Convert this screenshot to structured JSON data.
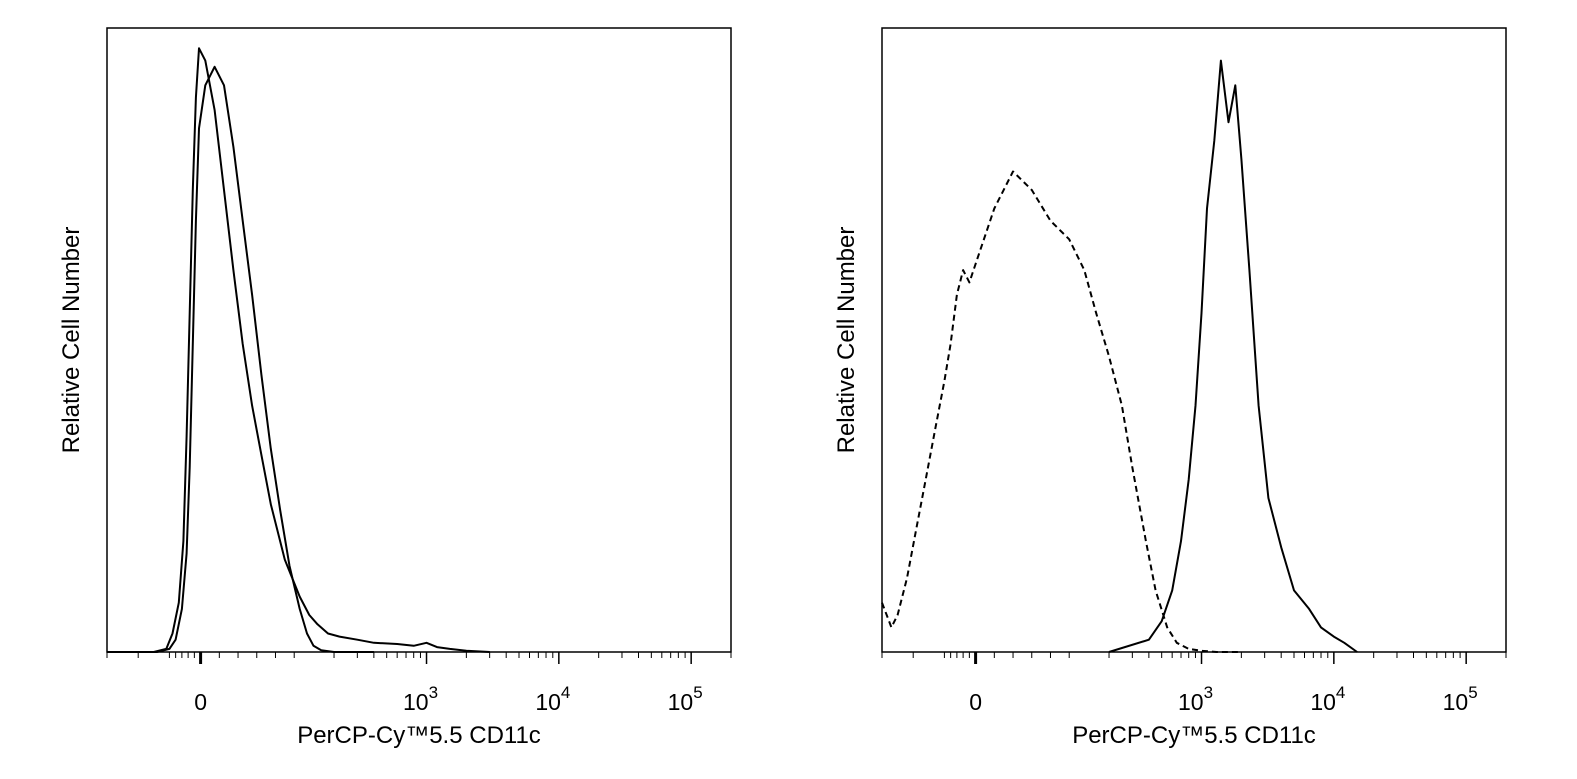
{
  "chart_data": [
    {
      "type": "line",
      "subtype": "flow-cytometry-histogram",
      "xlabel": "PerCP-Cy™5.5 CD11c",
      "ylabel": "Relative Cell Number",
      "x_scale": "biexponential",
      "xlim": [
        -300,
        200000
      ],
      "ylim": [
        0,
        100
      ],
      "x_ticks": [
        {
          "value": 0,
          "base": "0",
          "exp": ""
        },
        {
          "value": 1000,
          "base": "10",
          "exp": "3"
        },
        {
          "value": 10000,
          "base": "10",
          "exp": "4"
        },
        {
          "value": 100000,
          "base": "10",
          "exp": "5"
        }
      ],
      "grid": false,
      "legend": "none",
      "series": [
        {
          "style": "solid",
          "x": [
            -300,
            -150,
            -110,
            -90,
            -70,
            -55,
            -45,
            -35,
            -25,
            -15,
            -5,
            5,
            15,
            25,
            35,
            45,
            55,
            65,
            75,
            90,
            110,
            130,
            150,
            180,
            220,
            300,
            400,
            600,
            800,
            1000,
            1200,
            1500,
            2000,
            3000
          ],
          "y": [
            0,
            0,
            0.5,
            3,
            8,
            18,
            35,
            55,
            75,
            90,
            98,
            96,
            88,
            75,
            62,
            50,
            40,
            32,
            24,
            15,
            9,
            6,
            4.5,
            3,
            2.5,
            2,
            1.5,
            1.3,
            1,
            1.5,
            0.8,
            0.5,
            0.2,
            0
          ]
        },
        {
          "style": "solid",
          "x": [
            -300,
            -140,
            -100,
            -80,
            -60,
            -45,
            -35,
            -25,
            -15,
            -5,
            5,
            15,
            25,
            35,
            45,
            55,
            65,
            75,
            85,
            95,
            110,
            125,
            140,
            160,
            200,
            400
          ],
          "y": [
            0,
            0,
            0.5,
            2,
            7,
            16,
            30,
            50,
            70,
            85,
            92,
            95,
            92,
            82,
            70,
            58,
            45,
            33,
            23,
            14,
            7,
            3,
            1,
            0.3,
            0,
            0
          ]
        }
      ]
    },
    {
      "type": "line",
      "subtype": "flow-cytometry-histogram",
      "xlabel": "PerCP-Cy™5.5 CD11c",
      "ylabel": "Relative Cell Number",
      "x_scale": "biexponential",
      "xlim": [
        -300,
        200000
      ],
      "ylim": [
        0,
        100
      ],
      "x_ticks": [
        {
          "value": 0,
          "base": "0",
          "exp": ""
        },
        {
          "value": 1000,
          "base": "10",
          "exp": "3"
        },
        {
          "value": 10000,
          "base": "10",
          "exp": "4"
        },
        {
          "value": 100000,
          "base": "10",
          "exp": "5"
        }
      ],
      "grid": false,
      "legend": "none",
      "series": [
        {
          "style": "dashed",
          "x": [
            -300,
            -270,
            -250,
            -220,
            -190,
            -160,
            -130,
            -100,
            -80,
            -60,
            -40,
            -20,
            0,
            20,
            40,
            60,
            80,
            100,
            130,
            160,
            200,
            250,
            300,
            380,
            450,
            550,
            650,
            800,
            1000,
            1300,
            2000
          ],
          "y": [
            8,
            4,
            6,
            12,
            20,
            28,
            36,
            44,
            50,
            58,
            62,
            60,
            63,
            72,
            78,
            75,
            70,
            67,
            62,
            55,
            48,
            40,
            30,
            18,
            10,
            4,
            1.5,
            0.5,
            0.2,
            0,
            0
          ]
        },
        {
          "style": "solid",
          "x": [
            200,
            400,
            500,
            600,
            700,
            800,
            900,
            1000,
            1100,
            1250,
            1400,
            1600,
            1800,
            2000,
            2300,
            2700,
            3200,
            4000,
            5000,
            6500,
            8000,
            10000,
            12000,
            15000
          ],
          "y": [
            0,
            2,
            5,
            10,
            18,
            28,
            40,
            55,
            72,
            83,
            96,
            86,
            92,
            80,
            62,
            40,
            25,
            17,
            10,
            7,
            4,
            2.5,
            1.5,
            0
          ]
        }
      ]
    }
  ]
}
